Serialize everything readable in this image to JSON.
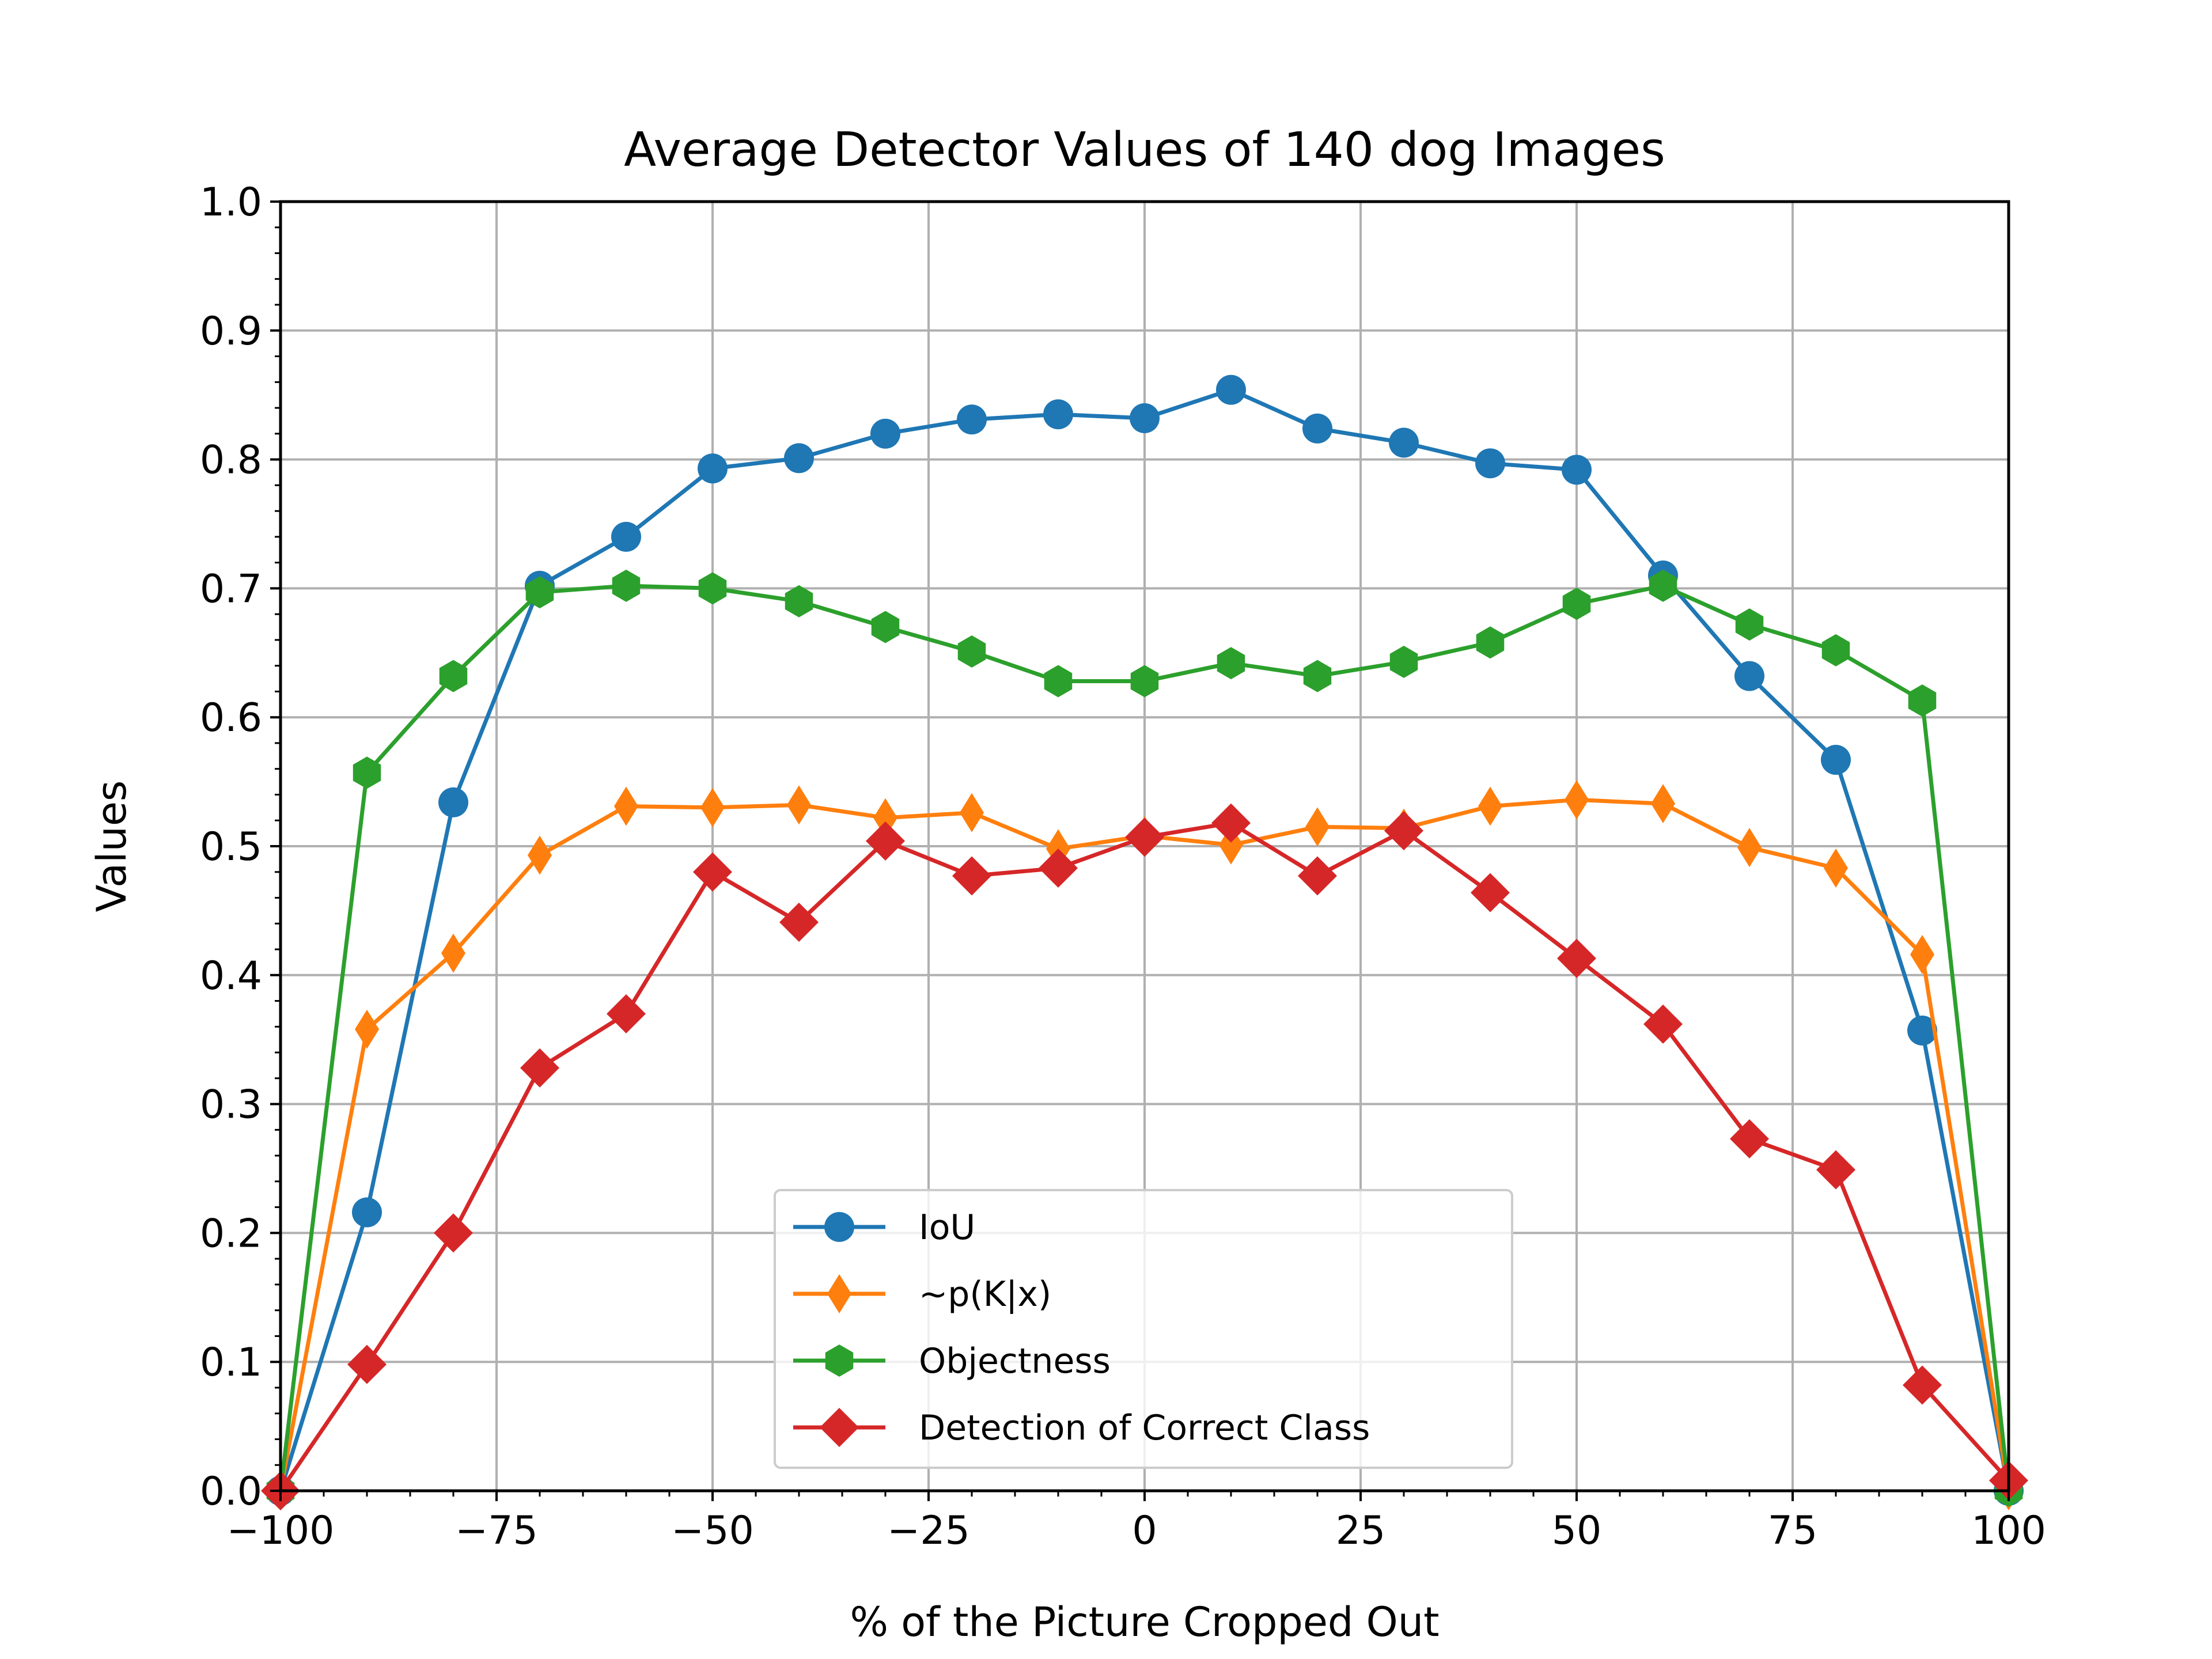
{
  "chart_data": {
    "type": "line",
    "title": "Average Detector Values of 140 dog Images",
    "xlabel": "% of the Picture Cropped Out",
    "ylabel": "Values",
    "xlim": [
      -100,
      100
    ],
    "ylim": [
      0,
      1
    ],
    "grid": true,
    "legend_position": "lower center",
    "x_ticks": [
      -100,
      -75,
      -50,
      -25,
      0,
      25,
      50,
      75,
      100
    ],
    "x_tick_labels": [
      "−100",
      "−75",
      "−50",
      "−25",
      "0",
      "25",
      "50",
      "75",
      "100"
    ],
    "y_ticks": [
      0,
      0.1,
      0.2,
      0.3,
      0.4,
      0.5,
      0.6,
      0.7,
      0.8,
      0.9,
      1.0
    ],
    "y_tick_labels": [
      "0.0",
      "0.1",
      "0.2",
      "0.3",
      "0.4",
      "0.5",
      "0.6",
      "0.7",
      "0.8",
      "0.9",
      "1.0"
    ],
    "x": [
      -100,
      -90,
      -80,
      -70,
      -60,
      -50,
      -40,
      -30,
      -20,
      -10,
      0,
      10,
      20,
      30,
      40,
      50,
      60,
      70,
      80,
      90,
      100
    ],
    "series": [
      {
        "name": "IoU",
        "color": "#1f77b4",
        "marker": "circle",
        "values": [
          0.0,
          0.216,
          0.534,
          0.702,
          0.74,
          0.793,
          0.801,
          0.82,
          0.831,
          0.835,
          0.832,
          0.854,
          0.824,
          0.813,
          0.797,
          0.792,
          0.71,
          0.632,
          0.567,
          0.357,
          0.0
        ]
      },
      {
        "name": "~p(K|x)",
        "color": "#ff7f0e",
        "marker": "thin-diamond",
        "values": [
          0.0,
          0.358,
          0.417,
          0.493,
          0.531,
          0.53,
          0.532,
          0.522,
          0.526,
          0.498,
          0.508,
          0.501,
          0.515,
          0.514,
          0.531,
          0.536,
          0.533,
          0.499,
          0.483,
          0.416,
          0.0
        ]
      },
      {
        "name": "Objectness",
        "color": "#2ca02c",
        "marker": "hexagon",
        "values": [
          0.0,
          0.557,
          0.632,
          0.697,
          0.702,
          0.7,
          0.69,
          0.67,
          0.651,
          0.628,
          0.628,
          0.642,
          0.632,
          0.643,
          0.658,
          0.688,
          0.702,
          0.672,
          0.652,
          0.613,
          0.0
        ]
      },
      {
        "name": "Detection of Correct Class",
        "color": "#d62728",
        "marker": "diamond",
        "values": [
          0.0,
          0.098,
          0.2,
          0.328,
          0.37,
          0.48,
          0.441,
          0.504,
          0.477,
          0.483,
          0.507,
          0.518,
          0.477,
          0.512,
          0.464,
          0.413,
          0.362,
          0.273,
          0.249,
          0.082,
          0.008
        ]
      }
    ]
  }
}
